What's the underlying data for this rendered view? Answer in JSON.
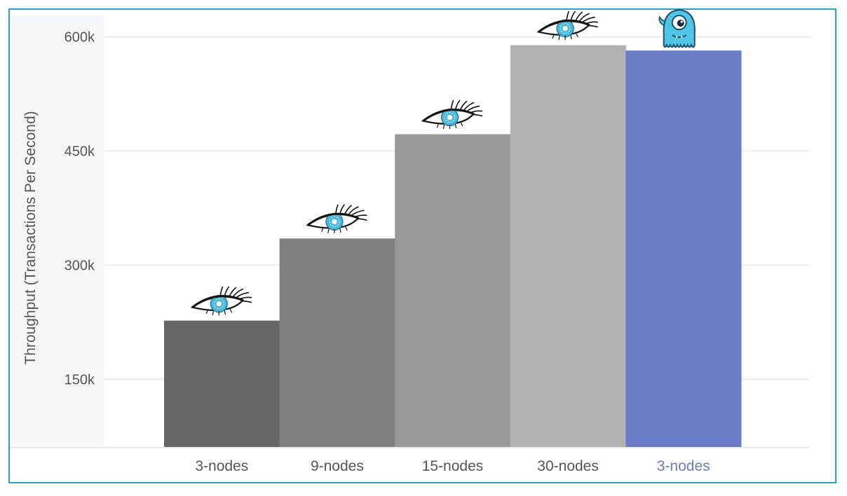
{
  "chart_data": {
    "type": "bar",
    "title": "",
    "xlabel": "",
    "ylabel": "Throughput (Transactions Per Second)",
    "ylim": [
      60000,
      630000
    ],
    "yticks": [
      150000,
      300000,
      450000,
      600000
    ],
    "ytick_labels": [
      "150k",
      "300k",
      "450k",
      "600k"
    ],
    "grid": true,
    "categories": [
      "3-nodes",
      "9-nodes",
      "15-nodes",
      "30-nodes",
      "3-nodes"
    ],
    "values": [
      227000,
      335000,
      472000,
      589000,
      582000
    ],
    "bar_colors": [
      "#666666",
      "#808080",
      "#999999",
      "#b2b2b2",
      "#6a7bc8"
    ],
    "label_colors": [
      "#555555",
      "#555555",
      "#555555",
      "#555555",
      "#6a7bc8"
    ],
    "bar_icons": [
      "eye-icon",
      "eye-icon",
      "eye-icon",
      "eye-icon",
      "octopus-mascot-icon"
    ]
  },
  "colors": {
    "frame_border": "#2aa0cc",
    "plot_band": "#f4f8fb",
    "gridline": "#e6e9ec",
    "eye_iris": "#4bb8dd"
  }
}
